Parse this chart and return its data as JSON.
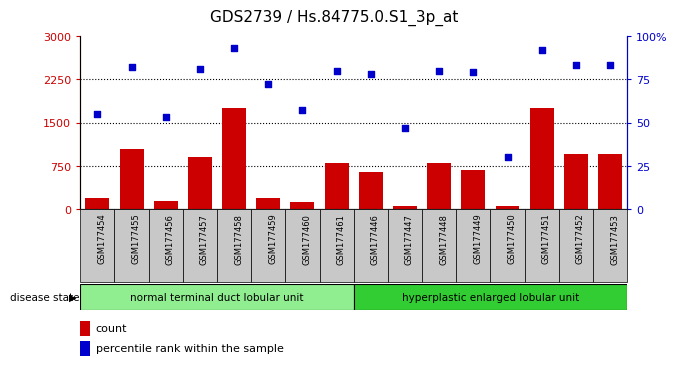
{
  "title": "GDS2739 / Hs.84775.0.S1_3p_at",
  "samples": [
    "GSM177454",
    "GSM177455",
    "GSM177456",
    "GSM177457",
    "GSM177458",
    "GSM177459",
    "GSM177460",
    "GSM177461",
    "GSM177446",
    "GSM177447",
    "GSM177448",
    "GSM177449",
    "GSM177450",
    "GSM177451",
    "GSM177452",
    "GSM177453"
  ],
  "counts": [
    200,
    1050,
    150,
    900,
    1750,
    200,
    130,
    800,
    650,
    60,
    800,
    680,
    60,
    1750,
    950,
    950
  ],
  "percentiles": [
    55,
    82,
    53,
    81,
    93,
    72,
    57,
    80,
    78,
    47,
    80,
    79,
    30,
    92,
    83,
    83
  ],
  "group1_label": "normal terminal duct lobular unit",
  "group1_count": 8,
  "group2_label": "hyperplastic enlarged lobular unit",
  "group2_count": 8,
  "bar_color": "#cc0000",
  "dot_color": "#0000cc",
  "left_axis_color": "#cc0000",
  "right_axis_color": "#0000cc",
  "ylim_left": [
    0,
    3000
  ],
  "ylim_right": [
    0,
    100
  ],
  "left_ticks": [
    0,
    750,
    1500,
    2250,
    3000
  ],
  "right_ticks": [
    0,
    25,
    50,
    75,
    100
  ],
  "right_tick_labels": [
    "0",
    "25",
    "50",
    "75",
    "100%"
  ],
  "grid_values": [
    750,
    1500,
    2250
  ],
  "group1_color": "#90ee90",
  "group2_color": "#32cd32",
  "disease_state_label": "disease state",
  "legend_count_label": "count",
  "legend_pct_label": "percentile rank within the sample",
  "title_fontsize": 11,
  "tick_fontsize": 8,
  "sample_fontsize": 6
}
